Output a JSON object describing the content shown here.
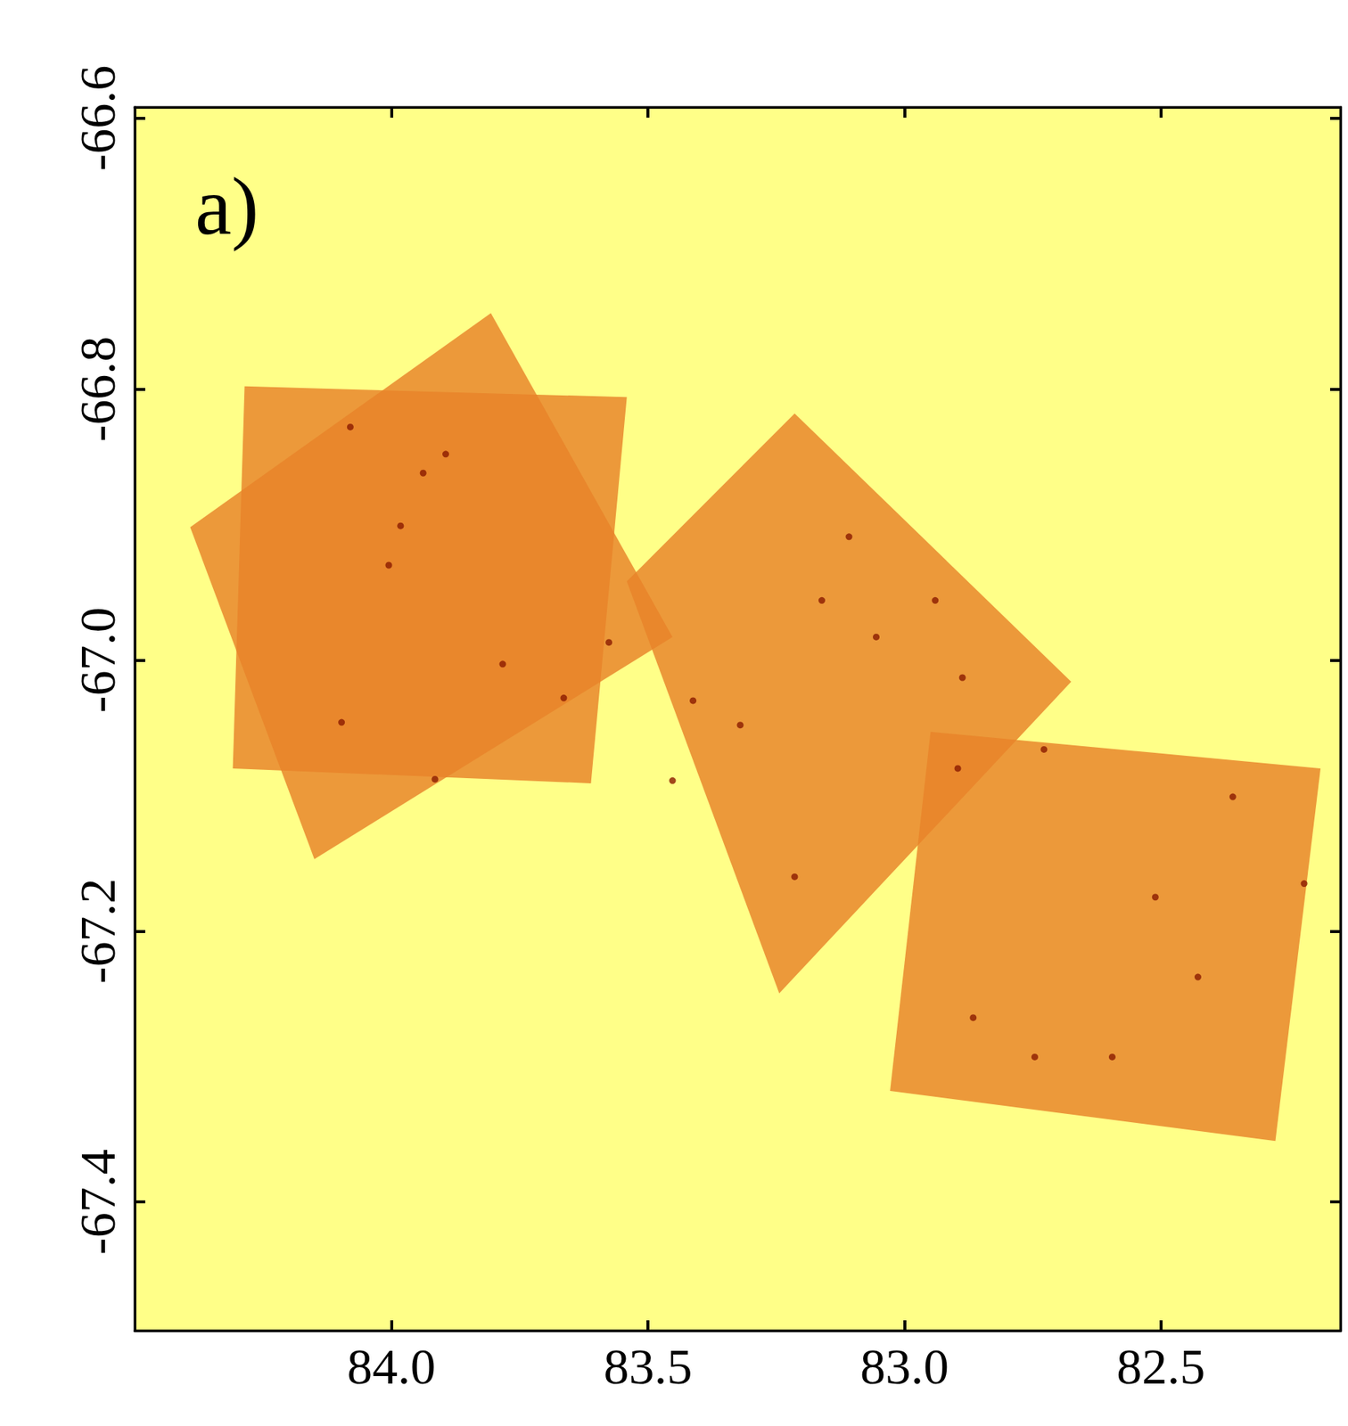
{
  "chart_data": {
    "type": "sky_map",
    "label": "a)",
    "xlim": [
      84.5,
      82.15
    ],
    "ylim": [
      -67.495,
      -66.592
    ],
    "xticks": [
      {
        "value": 84,
        "label": "84.0"
      },
      {
        "value": 83.5,
        "label": "83.5"
      },
      {
        "value": 83,
        "label": "83.0"
      },
      {
        "value": 82.5,
        "label": "82.5"
      }
    ],
    "yticks": [
      -66.6,
      -66.8,
      {
        "value": -67,
        "label": "-67.0"
      },
      -67.2,
      -67.4
    ],
    "color": "#e8832a",
    "regions": [
      [
        [
          84.286,
          -66.798
        ],
        [
          83.541,
          -66.806
        ],
        [
          83.611,
          -67.091
        ],
        [
          84.309,
          -67.08
        ]
      ],
      [
        [
          83.806,
          -66.744
        ],
        [
          83.452,
          -66.983
        ],
        [
          84.15,
          -67.147
        ],
        [
          84.392,
          -66.902
        ]
      ],
      [
        [
          83.214,
          -66.818
        ],
        [
          82.675,
          -67.016
        ],
        [
          83.244,
          -67.246
        ],
        [
          83.541,
          -66.942
        ]
      ],
      [
        [
          82.949,
          -67.053
        ],
        [
          82.189,
          -67.08
        ],
        [
          82.277,
          -67.355
        ],
        [
          83.028,
          -67.318
        ]
      ]
    ],
    "sources": {
      "color": "#8b1a00",
      "x": [
        83.664,
        83.576,
        84.08,
        83.982,
        83.938,
        83.783,
        84.097,
        83.915,
        84.005,
        83.894,
        83.108,
        83.055,
        83.161,
        83.32,
        83.214,
        82.728,
        82.896,
        82.428,
        82.221,
        82.36,
        82.511,
        82.746,
        82.866,
        82.595,
        83.412,
        83.452,
        82.94,
        82.887
      ],
      "y": [
        -67.028,
        -66.987,
        -66.828,
        -66.901,
        -66.862,
        -67.003,
        -67.046,
        -67.088,
        -66.93,
        -66.848,
        -66.909,
        -66.983,
        -66.956,
        -67.048,
        -67.16,
        -67.066,
        -67.08,
        -67.234,
        -67.165,
        -67.101,
        -67.175,
        -67.293,
        -67.264,
        -67.293,
        -67.03,
        -67.089,
        -66.956,
        -67.013
      ]
    }
  }
}
